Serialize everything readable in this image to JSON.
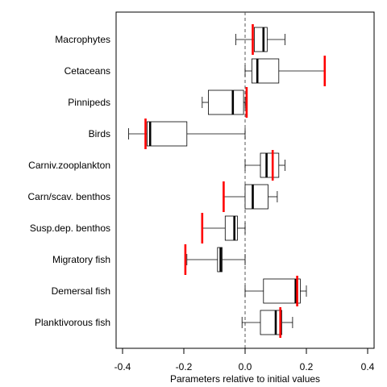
{
  "chart_data": {
    "type": "boxplot",
    "xlabel": "Parameters relative to initial values",
    "xlim": [
      -0.4,
      0.4
    ],
    "xticks": [
      -0.4,
      -0.2,
      0.0,
      0.2,
      0.4
    ],
    "xtick_labels": [
      "-0.4",
      "-0.2",
      "0.0",
      "0.2",
      "0.4"
    ],
    "reference_line_x": 0,
    "colors": {
      "box": "#000000",
      "marker": "#ff0000",
      "reference": "#555555"
    },
    "categories": [
      "Macrophytes",
      "Cetaceans",
      "Pinnipeds",
      "Birds",
      "Carniv.zooplankton",
      "Carn/scav. benthos",
      "Susp.dep. benthos",
      "Migratory fish",
      "Demersal fish",
      "Planktivorous fish"
    ],
    "boxes": [
      {
        "whisker_low": -0.03,
        "q1": 0.03,
        "median": 0.06,
        "q3": 0.072,
        "whisker_high": 0.13,
        "marker": 0.025
      },
      {
        "whisker_low": 0.0,
        "q1": 0.022,
        "median": 0.04,
        "q3": 0.11,
        "whisker_high": 0.26,
        "marker": 0.26
      },
      {
        "whisker_low": -0.14,
        "q1": -0.12,
        "median": -0.04,
        "q3": -0.005,
        "whisker_high": 0.0,
        "marker": 0.005
      },
      {
        "whisker_low": -0.38,
        "q1": -0.32,
        "median": -0.31,
        "q3": -0.19,
        "whisker_high": 0.0,
        "marker": -0.325
      },
      {
        "whisker_low": 0.0,
        "q1": 0.05,
        "median": 0.07,
        "q3": 0.11,
        "whisker_high": 0.13,
        "marker": 0.09
      },
      {
        "whisker_low": -0.07,
        "q1": 0.0,
        "median": 0.025,
        "q3": 0.075,
        "whisker_high": 0.105,
        "marker": -0.07
      },
      {
        "whisker_low": -0.14,
        "q1": -0.065,
        "median": -0.035,
        "q3": -0.025,
        "whisker_high": 0.0,
        "marker": -0.14
      },
      {
        "whisker_low": -0.19,
        "q1": -0.09,
        "median": -0.08,
        "q3": -0.075,
        "whisker_high": 0.0,
        "marker": -0.195
      },
      {
        "whisker_low": 0.0,
        "q1": 0.06,
        "median": 0.165,
        "q3": 0.18,
        "whisker_high": 0.2,
        "marker": 0.17
      },
      {
        "whisker_low": -0.01,
        "q1": 0.05,
        "median": 0.1,
        "q3": 0.12,
        "whisker_high": 0.155,
        "marker": 0.115
      }
    ]
  }
}
